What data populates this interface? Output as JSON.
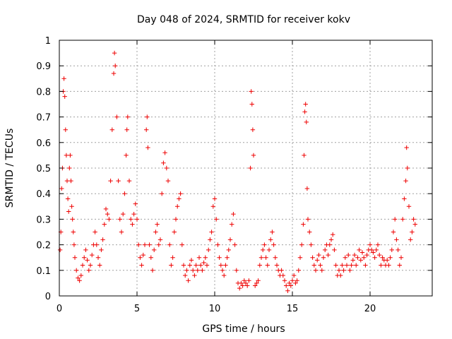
{
  "chart_data": {
    "type": "scatter",
    "title": "Day 048 of 2024, SRMTID for receiver kokv",
    "xlabel": "GPS time / hours",
    "ylabel": "SRMTID / TECUs",
    "xlim": [
      0,
      24
    ],
    "ylim": [
      0,
      1
    ],
    "xticks": [
      0,
      5,
      10,
      15,
      20
    ],
    "xtick_labels": [
      "0",
      "5",
      "10",
      "15",
      "20"
    ],
    "yticks": [
      0,
      0.1,
      0.2,
      0.3,
      0.4,
      0.5,
      0.6,
      0.7,
      0.8,
      0.9,
      1
    ],
    "ytick_labels": [
      "0",
      "0.1",
      "0.2",
      "0.3",
      "0.4",
      "0.5",
      "0.6",
      "0.7",
      "0.8",
      "0.9",
      "1"
    ],
    "grid": true,
    "marker": "+",
    "color": "#ee0000",
    "series": [
      {
        "name": "SRMTID",
        "points": [
          [
            0.05,
            0.18
          ],
          [
            0.1,
            0.25
          ],
          [
            0.15,
            0.42
          ],
          [
            0.2,
            0.5
          ],
          [
            0.25,
            0.8
          ],
          [
            0.3,
            0.85
          ],
          [
            0.35,
            0.78
          ],
          [
            0.4,
            0.65
          ],
          [
            0.45,
            0.55
          ],
          [
            0.5,
            0.45
          ],
          [
            0.55,
            0.38
          ],
          [
            0.6,
            0.33
          ],
          [
            0.65,
            0.5
          ],
          [
            0.7,
            0.55
          ],
          [
            0.75,
            0.45
          ],
          [
            0.8,
            0.35
          ],
          [
            0.85,
            0.3
          ],
          [
            0.9,
            0.25
          ],
          [
            0.95,
            0.2
          ],
          [
            1.0,
            0.15
          ],
          [
            1.1,
            0.1
          ],
          [
            1.2,
            0.07
          ],
          [
            1.3,
            0.06
          ],
          [
            1.4,
            0.08
          ],
          [
            1.5,
            0.12
          ],
          [
            1.6,
            0.15
          ],
          [
            1.7,
            0.18
          ],
          [
            1.8,
            0.14
          ],
          [
            1.9,
            0.1
          ],
          [
            2.0,
            0.12
          ],
          [
            2.1,
            0.16
          ],
          [
            2.2,
            0.2
          ],
          [
            2.3,
            0.25
          ],
          [
            2.4,
            0.2
          ],
          [
            2.5,
            0.15
          ],
          [
            2.6,
            0.12
          ],
          [
            2.7,
            0.18
          ],
          [
            2.8,
            0.22
          ],
          [
            2.9,
            0.28
          ],
          [
            3.0,
            0.34
          ],
          [
            3.1,
            0.32
          ],
          [
            3.2,
            0.3
          ],
          [
            3.3,
            0.45
          ],
          [
            3.4,
            0.65
          ],
          [
            3.5,
            0.87
          ],
          [
            3.55,
            0.95
          ],
          [
            3.6,
            0.9
          ],
          [
            3.7,
            0.7
          ],
          [
            3.8,
            0.45
          ],
          [
            3.9,
            0.3
          ],
          [
            4.0,
            0.25
          ],
          [
            4.1,
            0.32
          ],
          [
            4.2,
            0.4
          ],
          [
            4.3,
            0.55
          ],
          [
            4.35,
            0.65
          ],
          [
            4.4,
            0.7
          ],
          [
            4.5,
            0.45
          ],
          [
            4.6,
            0.3
          ],
          [
            4.7,
            0.28
          ],
          [
            4.8,
            0.32
          ],
          [
            4.9,
            0.36
          ],
          [
            5.0,
            0.3
          ],
          [
            5.1,
            0.2
          ],
          [
            5.2,
            0.15
          ],
          [
            5.3,
            0.12
          ],
          [
            5.4,
            0.16
          ],
          [
            5.5,
            0.2
          ],
          [
            5.6,
            0.65
          ],
          [
            5.65,
            0.7
          ],
          [
            5.7,
            0.58
          ],
          [
            5.8,
            0.2
          ],
          [
            5.9,
            0.15
          ],
          [
            6.0,
            0.1
          ],
          [
            6.1,
            0.18
          ],
          [
            6.2,
            0.25
          ],
          [
            6.3,
            0.28
          ],
          [
            6.4,
            0.2
          ],
          [
            6.5,
            0.22
          ],
          [
            6.6,
            0.4
          ],
          [
            6.7,
            0.52
          ],
          [
            6.8,
            0.56
          ],
          [
            6.9,
            0.5
          ],
          [
            7.0,
            0.45
          ],
          [
            7.1,
            0.2
          ],
          [
            7.2,
            0.12
          ],
          [
            7.3,
            0.15
          ],
          [
            7.4,
            0.25
          ],
          [
            7.5,
            0.3
          ],
          [
            7.6,
            0.35
          ],
          [
            7.7,
            0.38
          ],
          [
            7.8,
            0.4
          ],
          [
            7.9,
            0.2
          ],
          [
            8.0,
            0.12
          ],
          [
            8.1,
            0.08
          ],
          [
            8.2,
            0.1
          ],
          [
            8.3,
            0.06
          ],
          [
            8.4,
            0.12
          ],
          [
            8.5,
            0.14
          ],
          [
            8.6,
            0.1
          ],
          [
            8.7,
            0.08
          ],
          [
            8.8,
            0.12
          ],
          [
            8.9,
            0.1
          ],
          [
            9.0,
            0.15
          ],
          [
            9.1,
            0.12
          ],
          [
            9.2,
            0.1
          ],
          [
            9.3,
            0.13
          ],
          [
            9.4,
            0.15
          ],
          [
            9.5,
            0.12
          ],
          [
            9.6,
            0.18
          ],
          [
            9.7,
            0.22
          ],
          [
            9.8,
            0.25
          ],
          [
            9.9,
            0.35
          ],
          [
            10.0,
            0.38
          ],
          [
            10.1,
            0.3
          ],
          [
            10.2,
            0.2
          ],
          [
            10.3,
            0.15
          ],
          [
            10.4,
            0.12
          ],
          [
            10.5,
            0.1
          ],
          [
            10.6,
            0.08
          ],
          [
            10.7,
            0.12
          ],
          [
            10.8,
            0.15
          ],
          [
            10.9,
            0.18
          ],
          [
            11.0,
            0.22
          ],
          [
            11.1,
            0.28
          ],
          [
            11.2,
            0.32
          ],
          [
            11.3,
            0.2
          ],
          [
            11.4,
            0.1
          ],
          [
            11.5,
            0.05
          ],
          [
            11.6,
            0.03
          ],
          [
            11.7,
            0.05
          ],
          [
            11.8,
            0.04
          ],
          [
            11.9,
            0.06
          ],
          [
            12.0,
            0.05
          ],
          [
            12.1,
            0.04
          ],
          [
            12.2,
            0.06
          ],
          [
            12.3,
            0.5
          ],
          [
            12.35,
            0.8
          ],
          [
            12.4,
            0.75
          ],
          [
            12.45,
            0.65
          ],
          [
            12.5,
            0.55
          ],
          [
            12.6,
            0.04
          ],
          [
            12.7,
            0.05
          ],
          [
            12.8,
            0.06
          ],
          [
            12.9,
            0.12
          ],
          [
            13.0,
            0.15
          ],
          [
            13.1,
            0.18
          ],
          [
            13.2,
            0.2
          ],
          [
            13.3,
            0.15
          ],
          [
            13.4,
            0.12
          ],
          [
            13.5,
            0.18
          ],
          [
            13.6,
            0.22
          ],
          [
            13.7,
            0.25
          ],
          [
            13.8,
            0.2
          ],
          [
            13.9,
            0.15
          ],
          [
            14.0,
            0.12
          ],
          [
            14.1,
            0.1
          ],
          [
            14.2,
            0.08
          ],
          [
            14.3,
            0.1
          ],
          [
            14.4,
            0.08
          ],
          [
            14.5,
            0.06
          ],
          [
            14.6,
            0.04
          ],
          [
            14.7,
            0.02
          ],
          [
            14.8,
            0.05
          ],
          [
            14.9,
            0.04
          ],
          [
            15.0,
            0.06
          ],
          [
            15.1,
            0.08
          ],
          [
            15.2,
            0.05
          ],
          [
            15.3,
            0.06
          ],
          [
            15.4,
            0.1
          ],
          [
            15.5,
            0.15
          ],
          [
            15.6,
            0.2
          ],
          [
            15.7,
            0.28
          ],
          [
            15.75,
            0.55
          ],
          [
            15.8,
            0.72
          ],
          [
            15.85,
            0.75
          ],
          [
            15.9,
            0.68
          ],
          [
            15.95,
            0.42
          ],
          [
            16.0,
            0.3
          ],
          [
            16.1,
            0.25
          ],
          [
            16.2,
            0.2
          ],
          [
            16.3,
            0.15
          ],
          [
            16.4,
            0.12
          ],
          [
            16.5,
            0.1
          ],
          [
            16.6,
            0.14
          ],
          [
            16.7,
            0.16
          ],
          [
            16.8,
            0.12
          ],
          [
            16.9,
            0.1
          ],
          [
            17.0,
            0.15
          ],
          [
            17.1,
            0.18
          ],
          [
            17.2,
            0.2
          ],
          [
            17.3,
            0.16
          ],
          [
            17.4,
            0.2
          ],
          [
            17.5,
            0.22
          ],
          [
            17.6,
            0.24
          ],
          [
            17.7,
            0.18
          ],
          [
            17.8,
            0.12
          ],
          [
            17.9,
            0.08
          ],
          [
            18.0,
            0.1
          ],
          [
            18.1,
            0.08
          ],
          [
            18.2,
            0.12
          ],
          [
            18.3,
            0.1
          ],
          [
            18.4,
            0.15
          ],
          [
            18.5,
            0.12
          ],
          [
            18.6,
            0.16
          ],
          [
            18.7,
            0.1
          ],
          [
            18.8,
            0.12
          ],
          [
            18.9,
            0.14
          ],
          [
            19.0,
            0.16
          ],
          [
            19.1,
            0.12
          ],
          [
            19.2,
            0.15
          ],
          [
            19.3,
            0.18
          ],
          [
            19.4,
            0.14
          ],
          [
            19.5,
            0.17
          ],
          [
            19.6,
            0.15
          ],
          [
            19.7,
            0.12
          ],
          [
            19.8,
            0.16
          ],
          [
            19.9,
            0.18
          ],
          [
            20.0,
            0.2
          ],
          [
            20.1,
            0.18
          ],
          [
            20.2,
            0.17
          ],
          [
            20.3,
            0.15
          ],
          [
            20.4,
            0.18
          ],
          [
            20.5,
            0.2
          ],
          [
            20.6,
            0.16
          ],
          [
            20.7,
            0.12
          ],
          [
            20.8,
            0.15
          ],
          [
            20.9,
            0.14
          ],
          [
            21.0,
            0.12
          ],
          [
            21.1,
            0.14
          ],
          [
            21.2,
            0.12
          ],
          [
            21.3,
            0.15
          ],
          [
            21.4,
            0.18
          ],
          [
            21.5,
            0.25
          ],
          [
            21.6,
            0.3
          ],
          [
            21.7,
            0.22
          ],
          [
            21.8,
            0.18
          ],
          [
            21.9,
            0.12
          ],
          [
            22.0,
            0.15
          ],
          [
            22.1,
            0.3
          ],
          [
            22.2,
            0.38
          ],
          [
            22.3,
            0.45
          ],
          [
            22.35,
            0.58
          ],
          [
            22.4,
            0.5
          ],
          [
            22.5,
            0.35
          ],
          [
            22.6,
            0.22
          ],
          [
            22.7,
            0.25
          ],
          [
            22.8,
            0.3
          ],
          [
            22.9,
            0.28
          ]
        ]
      }
    ]
  }
}
